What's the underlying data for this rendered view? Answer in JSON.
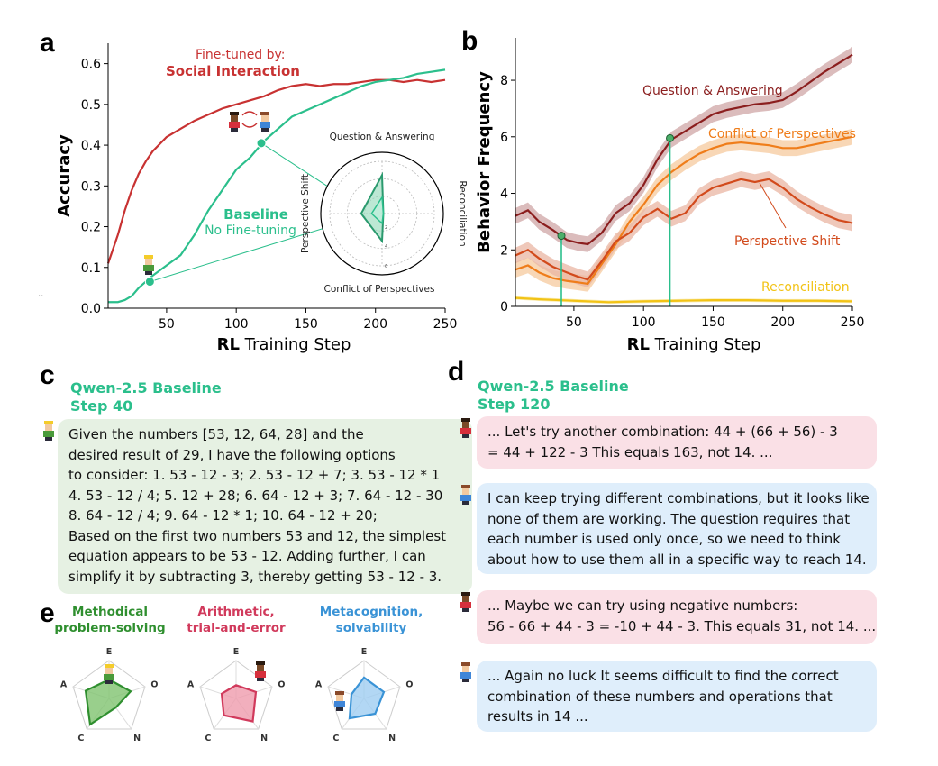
{
  "panels": {
    "a": "a",
    "b": "b",
    "c": "c",
    "d": "d",
    "e": "e"
  },
  "chart_data": [
    {
      "type": "line",
      "panel": "a",
      "xlabel_bold": "RL",
      "xlabel_rest": " Training Step",
      "ylabel": "Accuracy",
      "xlim": [
        8,
        250
      ],
      "ylim": [
        0,
        0.65
      ],
      "xticks": [
        50,
        100,
        150,
        200,
        250
      ],
      "yticks": [
        0.0,
        0.1,
        0.2,
        0.3,
        0.4,
        0.5,
        0.6
      ],
      "ytick_labels": [
        "0.0",
        "0.1",
        "0.2",
        "0.3",
        "0.4",
        "0.5",
        "0.6"
      ],
      "series": [
        {
          "name": "Social Interaction",
          "color": "#c83232",
          "x": [
            8,
            15,
            20,
            25,
            30,
            35,
            40,
            50,
            60,
            70,
            80,
            90,
            100,
            110,
            120,
            130,
            140,
            150,
            160,
            170,
            180,
            190,
            200,
            210,
            220,
            230,
            240,
            250
          ],
          "y": [
            0.11,
            0.18,
            0.24,
            0.29,
            0.33,
            0.36,
            0.385,
            0.42,
            0.44,
            0.46,
            0.475,
            0.49,
            0.5,
            0.51,
            0.52,
            0.535,
            0.545,
            0.55,
            0.545,
            0.55,
            0.55,
            0.555,
            0.56,
            0.56,
            0.555,
            0.56,
            0.555,
            0.56
          ]
        },
        {
          "name": "Baseline",
          "color": "#2bbf8c",
          "x": [
            8,
            15,
            20,
            25,
            30,
            35,
            40,
            50,
            60,
            70,
            80,
            90,
            100,
            110,
            120,
            130,
            140,
            150,
            160,
            170,
            180,
            190,
            200,
            210,
            220,
            230,
            240,
            250
          ],
          "y": [
            0.015,
            0.015,
            0.02,
            0.03,
            0.05,
            0.065,
            0.08,
            0.105,
            0.13,
            0.18,
            0.24,
            0.29,
            0.34,
            0.37,
            0.41,
            0.44,
            0.47,
            0.485,
            0.5,
            0.515,
            0.53,
            0.545,
            0.555,
            0.56,
            0.565,
            0.575,
            0.58,
            0.585
          ]
        }
      ],
      "highlight_points": [
        {
          "x": 38,
          "y": 0.065
        },
        {
          "x": 118,
          "y": 0.405
        }
      ],
      "annotations": {
        "finetuned_line1": "Fine-tuned by:",
        "finetuned_line2": "Social Interaction",
        "baseline_line1": "Baseline",
        "baseline_line2": "No Fine-tuning",
        "stray_mark": ".."
      },
      "inset_radar": {
        "axes": [
          "Question & Answering",
          "Reconciliation",
          "Conflict of Perspectives",
          "Perspective Shift"
        ],
        "labels": {
          "top": "Question & Answering",
          "right": "Reconciliation",
          "bottom": "Conflict of Perspectives",
          "left": "Perspective Shift"
        },
        "ring_labels": [
          "2",
          "4",
          "6"
        ],
        "max": 8,
        "step40": [
          2.5,
          0.2,
          1.5,
          1.6
        ],
        "step120": [
          5.9,
          0.2,
          4.2,
          3.2
        ]
      }
    },
    {
      "type": "line",
      "panel": "b",
      "xlabel_bold": "RL",
      "xlabel_rest": " Training Step",
      "ylabel": "Behavior Frequency",
      "xlim": [
        8,
        250
      ],
      "ylim": [
        0,
        9.5
      ],
      "xticks": [
        50,
        100,
        150,
        200,
        250
      ],
      "yticks": [
        0,
        2,
        4,
        6,
        8
      ],
      "ytick_labels": [
        "0",
        "2",
        "4",
        "6",
        "8"
      ],
      "vlines": [
        41,
        119
      ],
      "series": [
        {
          "name": "Question & Answering",
          "color": "#8b1e1e",
          "band": "#cfa6a6",
          "band_half": 0.28,
          "x": [
            8,
            17,
            25,
            35,
            45,
            53,
            60,
            70,
            80,
            90,
            100,
            110,
            120,
            130,
            140,
            150,
            160,
            170,
            180,
            190,
            200,
            210,
            220,
            230,
            240,
            250
          ],
          "y": [
            3.2,
            3.4,
            3.0,
            2.7,
            2.35,
            2.25,
            2.2,
            2.6,
            3.3,
            3.65,
            4.3,
            5.2,
            5.9,
            6.2,
            6.5,
            6.8,
            6.95,
            7.05,
            7.15,
            7.2,
            7.3,
            7.6,
            7.95,
            8.3,
            8.6,
            8.9
          ]
        },
        {
          "name": "Conflict of Perspectives",
          "color": "#ef7d1a",
          "band": "#f6c99e",
          "band_half": 0.28,
          "x": [
            8,
            17,
            25,
            35,
            45,
            53,
            60,
            70,
            80,
            90,
            100,
            110,
            120,
            130,
            140,
            150,
            160,
            170,
            180,
            190,
            200,
            210,
            220,
            230,
            240,
            250
          ],
          "y": [
            1.3,
            1.45,
            1.2,
            1.0,
            0.9,
            0.85,
            0.8,
            1.5,
            2.2,
            3.0,
            3.6,
            4.3,
            4.75,
            5.1,
            5.4,
            5.6,
            5.75,
            5.8,
            5.75,
            5.7,
            5.6,
            5.6,
            5.7,
            5.8,
            5.9,
            6.0
          ]
        },
        {
          "name": "Perspective Shift",
          "color": "#d24a1c",
          "band": "#eab5a3",
          "band_half": 0.28,
          "x": [
            8,
            17,
            25,
            35,
            45,
            53,
            60,
            70,
            80,
            90,
            100,
            110,
            120,
            130,
            140,
            150,
            160,
            170,
            180,
            190,
            200,
            210,
            220,
            230,
            240,
            250
          ],
          "y": [
            1.8,
            2.0,
            1.7,
            1.4,
            1.2,
            1.05,
            0.95,
            1.6,
            2.3,
            2.6,
            3.15,
            3.45,
            3.1,
            3.3,
            3.9,
            4.2,
            4.35,
            4.5,
            4.4,
            4.5,
            4.2,
            3.8,
            3.5,
            3.25,
            3.05,
            2.95
          ]
        },
        {
          "name": "Reconciliation",
          "color": "#f2c316",
          "band": "#f8e59a",
          "band_half": 0.06,
          "x": [
            8,
            25,
            50,
            75,
            100,
            125,
            150,
            175,
            200,
            225,
            250
          ],
          "y": [
            0.3,
            0.25,
            0.2,
            0.15,
            0.18,
            0.2,
            0.22,
            0.22,
            0.2,
            0.2,
            0.18
          ]
        }
      ],
      "highlight_points": [
        {
          "x": 41,
          "y": 2.5
        },
        {
          "x": 119,
          "y": 5.95
        }
      ],
      "labels": {
        "qa": "Question & Answering",
        "conflict": "Conflict of Perspectives",
        "shift": "Perspective Shift",
        "reconciliation": "Reconciliation"
      }
    },
    {
      "type": "radar",
      "panel": "e",
      "axes": [
        "E",
        "O",
        "N",
        "C",
        "A"
      ],
      "max": 1,
      "charts": [
        {
          "title_line1": "Methodical",
          "title_line2": "problem-solving",
          "color": "#2f8f2f",
          "fill": "#7fc36f",
          "values": [
            0.5,
            0.6,
            0.3,
            0.85,
            0.65
          ]
        },
        {
          "title_line1": "Arithmetic,",
          "title_line2": "trial-and-error",
          "color": "#d13a5c",
          "fill": "#ef9bad",
          "values": [
            0.35,
            0.55,
            0.75,
            0.55,
            0.4
          ]
        },
        {
          "title_line1": "Metacognition,",
          "title_line2": "solvability",
          "color": "#3a93d6",
          "fill": "#9fcdf1",
          "values": [
            0.55,
            0.55,
            0.5,
            0.65,
            0.35
          ]
        }
      ]
    }
  ],
  "panel_c": {
    "title_line1": "Qwen-2.5 Baseline",
    "title_line2": "Step 40",
    "lines": [
      "Given the numbers [53, 12, 64, 28] and the",
      "desired result of 29, I have the following options",
      "to consider: 1. 53 - 12 - 3; 2. 53 - 12 + 7; 3. 53 - 12 * 1",
      "4. 53 - 12 / 4; 5. 12 + 28; 6. 64 - 12 + 3; 7. 64 - 12 - 30",
      "8. 64 - 12 / 4; 9. 64 - 12 * 1; 10. 64 - 12 + 20;",
      "Based on the first two numbers 53 and 12, the simplest",
      "equation appears to be 53 - 12.  Adding further, I can",
      "simplify it by subtracting 3, thereby getting 53 - 12 - 3."
    ]
  },
  "panel_d": {
    "title_line1": "Qwen-2.5 Baseline",
    "title_line2": "Step 120",
    "messages": [
      {
        "speaker": "dark",
        "lines": [
          "... Let's try another combination: 44 + (66 + 56) - 3",
          "= 44 + 122 - 3  This equals 163, not 14. ..."
        ]
      },
      {
        "speaker": "light",
        "lines": [
          "I can keep trying different combinations, but it looks like",
          "none of them are working. The question requires that",
          "each number is used only once, so we need to think",
          "about how to use them all in a specific way to reach 14."
        ]
      },
      {
        "speaker": "dark",
        "lines": [
          "... Maybe we can try using negative numbers:",
          "56 - 66 + 44 - 3 = -10 + 44 - 3. This equals 31, not 14. ..."
        ]
      },
      {
        "speaker": "light",
        "lines": [
          "... Again no luck  It seems difficult to find the correct",
          "combination of these numbers and operations that",
          "results in 14 ..."
        ]
      }
    ]
  }
}
